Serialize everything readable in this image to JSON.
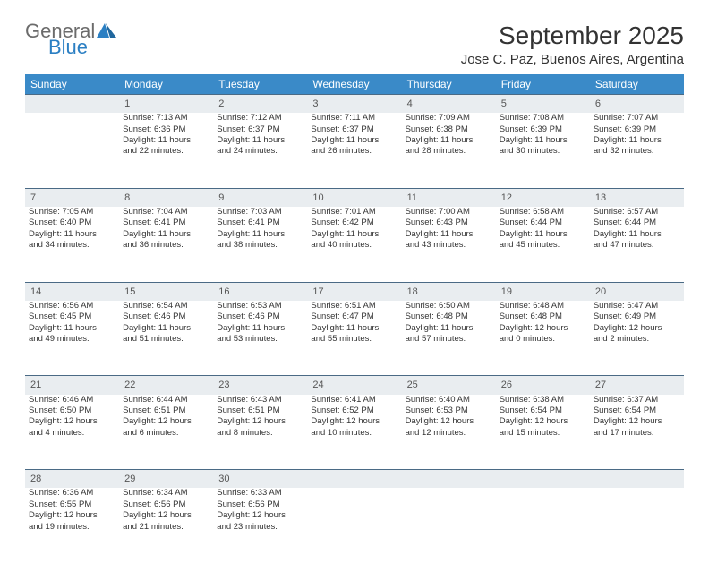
{
  "logo": {
    "general": "General",
    "blue": "Blue"
  },
  "title": "September 2025",
  "location": "Jose C. Paz, Buenos Aires, Argentina",
  "colors": {
    "header_bg": "#3a8ac8",
    "header_text": "#ffffff",
    "daynum_bg": "#e9edf0",
    "daynum_border": "#4a6a85",
    "body_text": "#333333",
    "logo_gray": "#6b6b6b",
    "logo_blue": "#2b7fc3"
  },
  "day_headers": [
    "Sunday",
    "Monday",
    "Tuesday",
    "Wednesday",
    "Thursday",
    "Friday",
    "Saturday"
  ],
  "weeks": [
    {
      "nums": [
        "",
        "1",
        "2",
        "3",
        "4",
        "5",
        "6"
      ],
      "cells": [
        [],
        [
          "Sunrise: 7:13 AM",
          "Sunset: 6:36 PM",
          "Daylight: 11 hours",
          "and 22 minutes."
        ],
        [
          "Sunrise: 7:12 AM",
          "Sunset: 6:37 PM",
          "Daylight: 11 hours",
          "and 24 minutes."
        ],
        [
          "Sunrise: 7:11 AM",
          "Sunset: 6:37 PM",
          "Daylight: 11 hours",
          "and 26 minutes."
        ],
        [
          "Sunrise: 7:09 AM",
          "Sunset: 6:38 PM",
          "Daylight: 11 hours",
          "and 28 minutes."
        ],
        [
          "Sunrise: 7:08 AM",
          "Sunset: 6:39 PM",
          "Daylight: 11 hours",
          "and 30 minutes."
        ],
        [
          "Sunrise: 7:07 AM",
          "Sunset: 6:39 PM",
          "Daylight: 11 hours",
          "and 32 minutes."
        ]
      ]
    },
    {
      "nums": [
        "7",
        "8",
        "9",
        "10",
        "11",
        "12",
        "13"
      ],
      "cells": [
        [
          "Sunrise: 7:05 AM",
          "Sunset: 6:40 PM",
          "Daylight: 11 hours",
          "and 34 minutes."
        ],
        [
          "Sunrise: 7:04 AM",
          "Sunset: 6:41 PM",
          "Daylight: 11 hours",
          "and 36 minutes."
        ],
        [
          "Sunrise: 7:03 AM",
          "Sunset: 6:41 PM",
          "Daylight: 11 hours",
          "and 38 minutes."
        ],
        [
          "Sunrise: 7:01 AM",
          "Sunset: 6:42 PM",
          "Daylight: 11 hours",
          "and 40 minutes."
        ],
        [
          "Sunrise: 7:00 AM",
          "Sunset: 6:43 PM",
          "Daylight: 11 hours",
          "and 43 minutes."
        ],
        [
          "Sunrise: 6:58 AM",
          "Sunset: 6:44 PM",
          "Daylight: 11 hours",
          "and 45 minutes."
        ],
        [
          "Sunrise: 6:57 AM",
          "Sunset: 6:44 PM",
          "Daylight: 11 hours",
          "and 47 minutes."
        ]
      ]
    },
    {
      "nums": [
        "14",
        "15",
        "16",
        "17",
        "18",
        "19",
        "20"
      ],
      "cells": [
        [
          "Sunrise: 6:56 AM",
          "Sunset: 6:45 PM",
          "Daylight: 11 hours",
          "and 49 minutes."
        ],
        [
          "Sunrise: 6:54 AM",
          "Sunset: 6:46 PM",
          "Daylight: 11 hours",
          "and 51 minutes."
        ],
        [
          "Sunrise: 6:53 AM",
          "Sunset: 6:46 PM",
          "Daylight: 11 hours",
          "and 53 minutes."
        ],
        [
          "Sunrise: 6:51 AM",
          "Sunset: 6:47 PM",
          "Daylight: 11 hours",
          "and 55 minutes."
        ],
        [
          "Sunrise: 6:50 AM",
          "Sunset: 6:48 PM",
          "Daylight: 11 hours",
          "and 57 minutes."
        ],
        [
          "Sunrise: 6:48 AM",
          "Sunset: 6:48 PM",
          "Daylight: 12 hours",
          "and 0 minutes."
        ],
        [
          "Sunrise: 6:47 AM",
          "Sunset: 6:49 PM",
          "Daylight: 12 hours",
          "and 2 minutes."
        ]
      ]
    },
    {
      "nums": [
        "21",
        "22",
        "23",
        "24",
        "25",
        "26",
        "27"
      ],
      "cells": [
        [
          "Sunrise: 6:46 AM",
          "Sunset: 6:50 PM",
          "Daylight: 12 hours",
          "and 4 minutes."
        ],
        [
          "Sunrise: 6:44 AM",
          "Sunset: 6:51 PM",
          "Daylight: 12 hours",
          "and 6 minutes."
        ],
        [
          "Sunrise: 6:43 AM",
          "Sunset: 6:51 PM",
          "Daylight: 12 hours",
          "and 8 minutes."
        ],
        [
          "Sunrise: 6:41 AM",
          "Sunset: 6:52 PM",
          "Daylight: 12 hours",
          "and 10 minutes."
        ],
        [
          "Sunrise: 6:40 AM",
          "Sunset: 6:53 PM",
          "Daylight: 12 hours",
          "and 12 minutes."
        ],
        [
          "Sunrise: 6:38 AM",
          "Sunset: 6:54 PM",
          "Daylight: 12 hours",
          "and 15 minutes."
        ],
        [
          "Sunrise: 6:37 AM",
          "Sunset: 6:54 PM",
          "Daylight: 12 hours",
          "and 17 minutes."
        ]
      ]
    },
    {
      "nums": [
        "28",
        "29",
        "30",
        "",
        "",
        "",
        ""
      ],
      "cells": [
        [
          "Sunrise: 6:36 AM",
          "Sunset: 6:55 PM",
          "Daylight: 12 hours",
          "and 19 minutes."
        ],
        [
          "Sunrise: 6:34 AM",
          "Sunset: 6:56 PM",
          "Daylight: 12 hours",
          "and 21 minutes."
        ],
        [
          "Sunrise: 6:33 AM",
          "Sunset: 6:56 PM",
          "Daylight: 12 hours",
          "and 23 minutes."
        ],
        [],
        [],
        [],
        []
      ]
    }
  ]
}
